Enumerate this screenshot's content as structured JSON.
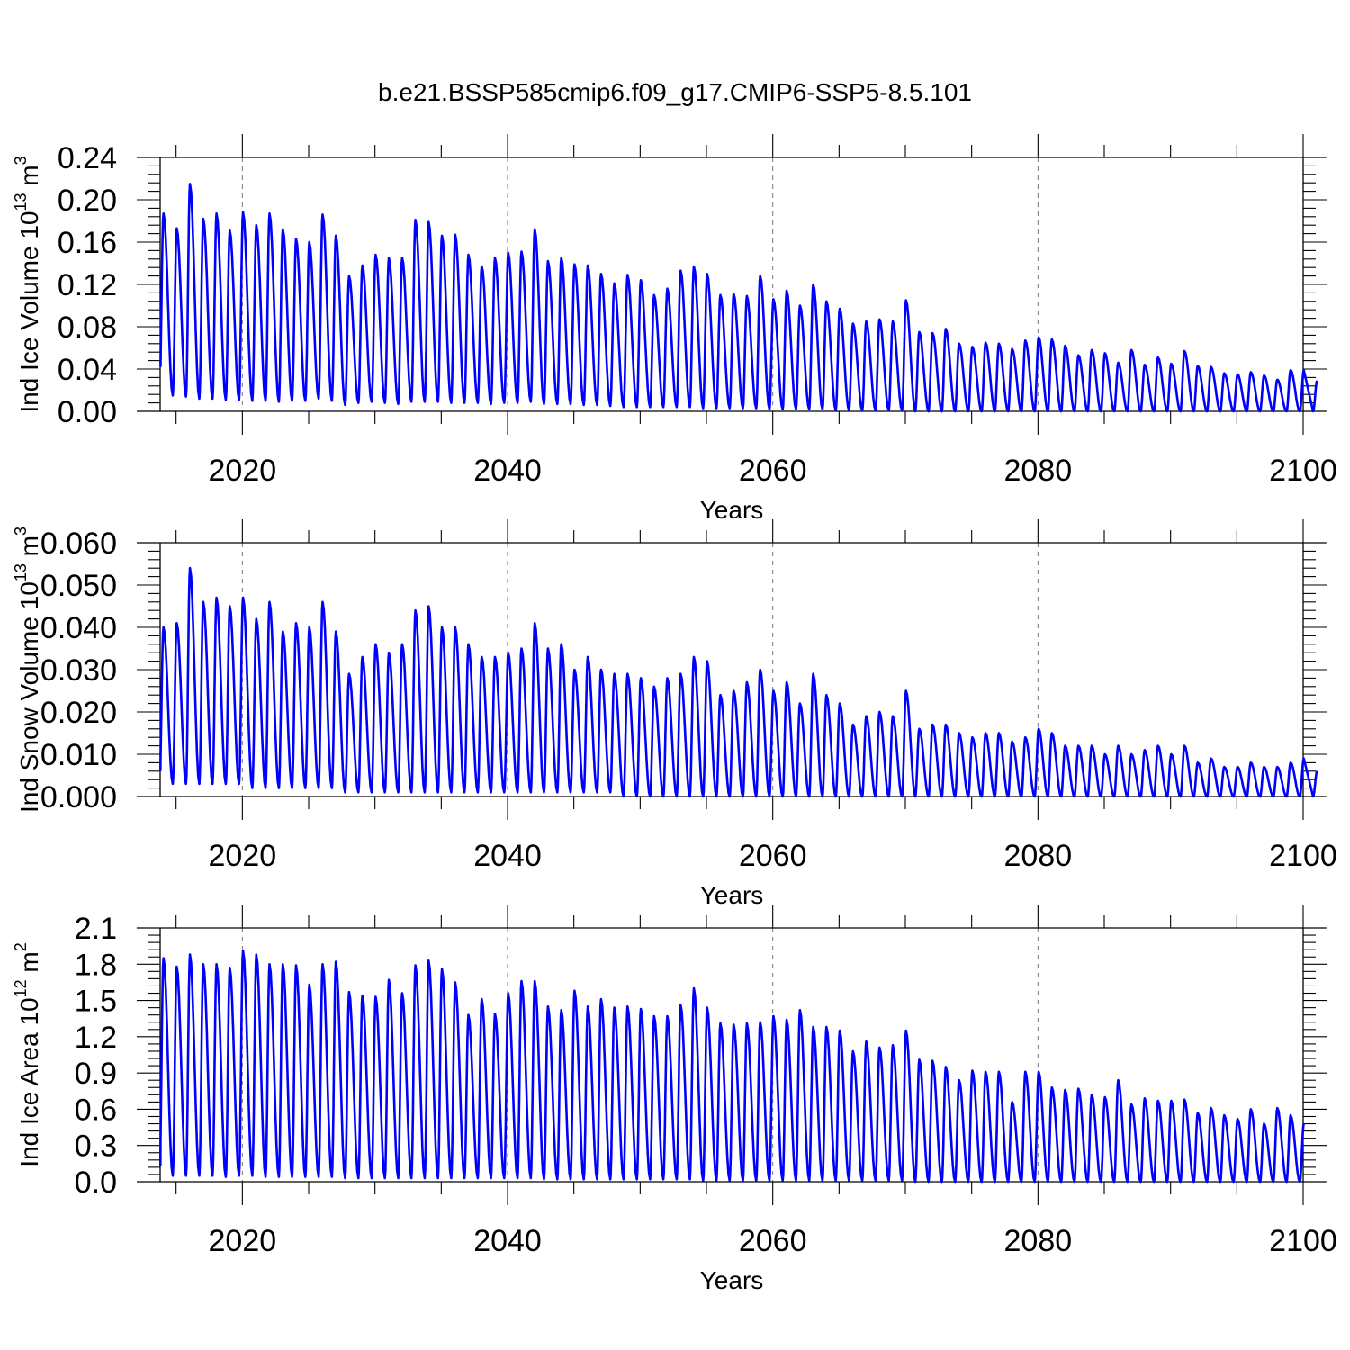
{
  "title": "b.e21.BSSP585cmip6.f09_g17.CMIP6-SSP5-8.5.101",
  "colors": {
    "line": "#0000ff",
    "axis": "#000000",
    "grid": "#777777"
  },
  "chart_data": [
    {
      "type": "line",
      "panel": "ice-volume",
      "ylabel": "Ind Ice Volume 10",
      "ylabel_exp": "13",
      "ylabel_unit": " m",
      "ylabel_unit_exp": "3",
      "xlabel": "Years",
      "xlim": [
        2013.8,
        2100
      ],
      "ylim": [
        0,
        0.24
      ],
      "x_ticks": [
        "2020",
        "2040",
        "2060",
        "2080",
        "2100"
      ],
      "y_ticks": [
        "0.00",
        "0.04",
        "0.08",
        "0.12",
        "0.16",
        "0.20",
        "0.24"
      ],
      "grid": "dashed vertical at 2020, 2040, 2060, 2080",
      "series": [
        {
          "start_year": 2014,
          "annual_max": [
            0.187,
            0.173,
            0.215,
            0.182,
            0.187,
            0.171,
            0.188,
            0.176,
            0.187,
            0.172,
            0.163,
            0.16,
            0.186,
            0.166,
            0.128,
            0.138,
            0.148,
            0.145,
            0.145,
            0.181,
            0.179,
            0.166,
            0.167,
            0.148,
            0.137,
            0.145,
            0.15,
            0.151,
            0.172,
            0.142,
            0.145,
            0.139,
            0.138,
            0.13,
            0.121,
            0.129,
            0.124,
            0.11,
            0.116,
            0.133,
            0.137,
            0.13,
            0.11,
            0.111,
            0.109,
            0.128,
            0.106,
            0.114,
            0.1,
            0.12,
            0.104,
            0.097,
            0.083,
            0.085,
            0.087,
            0.085,
            0.105,
            0.075,
            0.074,
            0.078,
            0.064,
            0.061,
            0.065,
            0.064,
            0.059,
            0.067,
            0.07,
            0.068,
            0.062,
            0.053,
            0.058,
            0.055,
            0.046,
            0.058,
            0.044,
            0.051,
            0.045,
            0.057,
            0.043,
            0.042,
            0.036,
            0.035,
            0.037,
            0.034,
            0.03,
            0.039,
            0.039,
            0.029
          ],
          "annual_min": [
            0.018,
            0.015,
            0.014,
            0.012,
            0.012,
            0.011,
            0.011,
            0.01,
            0.01,
            0.009,
            0.01,
            0.01,
            0.012,
            0.01,
            0.006,
            0.008,
            0.009,
            0.008,
            0.007,
            0.009,
            0.009,
            0.009,
            0.008,
            0.008,
            0.008,
            0.007,
            0.008,
            0.008,
            0.009,
            0.007,
            0.007,
            0.007,
            0.006,
            0.006,
            0.005,
            0.004,
            0.004,
            0.004,
            0.004,
            0.004,
            0.004,
            0.003,
            0.003,
            0.003,
            0.003,
            0.003,
            0.002,
            0.002,
            0.002,
            0.002,
            0.002,
            0.001,
            0.001,
            0.001,
            0.001,
            0.001,
            0.001,
            0.0,
            0.0,
            0.0,
            0.0,
            0.0,
            0.0,
            0.0,
            0.0,
            0.0,
            0.0,
            0.0,
            0.0,
            0.0,
            0.0,
            0.0,
            0.0,
            0.0,
            0.0,
            0.0,
            0.0,
            0.0,
            0.0,
            0.0,
            0.0,
            0.0,
            0.0,
            0.0,
            0.0,
            0.0,
            0.0,
            0.0
          ],
          "initial_value": 0.043
        }
      ]
    },
    {
      "type": "line",
      "panel": "snow-volume",
      "ylabel": "Ind Snow Volume 10",
      "ylabel_exp": "13",
      "ylabel_unit": " m",
      "ylabel_unit_exp": "3",
      "xlabel": "Years",
      "xlim": [
        2013.8,
        2100
      ],
      "ylim": [
        0,
        0.06
      ],
      "x_ticks": [
        "2020",
        "2040",
        "2060",
        "2080",
        "2100"
      ],
      "y_ticks": [
        "0.000",
        "0.010",
        "0.020",
        "0.030",
        "0.040",
        "0.050",
        "0.060"
      ],
      "grid": "dashed vertical at 2020, 2040, 2060, 2080",
      "series": [
        {
          "start_year": 2014,
          "annual_max": [
            0.04,
            0.041,
            0.054,
            0.046,
            0.047,
            0.045,
            0.047,
            0.042,
            0.046,
            0.039,
            0.041,
            0.04,
            0.046,
            0.039,
            0.029,
            0.033,
            0.036,
            0.034,
            0.036,
            0.044,
            0.045,
            0.04,
            0.04,
            0.036,
            0.033,
            0.033,
            0.034,
            0.035,
            0.041,
            0.035,
            0.036,
            0.03,
            0.033,
            0.03,
            0.029,
            0.029,
            0.028,
            0.026,
            0.028,
            0.029,
            0.033,
            0.032,
            0.024,
            0.025,
            0.027,
            0.03,
            0.025,
            0.027,
            0.022,
            0.029,
            0.024,
            0.022,
            0.017,
            0.019,
            0.02,
            0.019,
            0.025,
            0.016,
            0.017,
            0.017,
            0.015,
            0.014,
            0.015,
            0.015,
            0.013,
            0.014,
            0.016,
            0.015,
            0.012,
            0.012,
            0.012,
            0.01,
            0.012,
            0.01,
            0.011,
            0.012,
            0.01,
            0.012,
            0.008,
            0.009,
            0.007,
            0.007,
            0.008,
            0.007,
            0.007,
            0.008,
            0.009,
            0.006
          ],
          "annual_min": [
            0.003,
            0.003,
            0.003,
            0.003,
            0.003,
            0.003,
            0.003,
            0.002,
            0.002,
            0.002,
            0.002,
            0.002,
            0.002,
            0.002,
            0.001,
            0.001,
            0.001,
            0.001,
            0.001,
            0.001,
            0.001,
            0.001,
            0.001,
            0.001,
            0.001,
            0.001,
            0.001,
            0.001,
            0.001,
            0.001,
            0.001,
            0.001,
            0.001,
            0.001,
            0.001,
            0.0,
            0.0,
            0.0,
            0.0,
            0.0,
            0.0,
            0.0,
            0.0,
            0.0,
            0.0,
            0.0,
            0.0,
            0.0,
            0.0,
            0.0,
            0.0,
            0.0,
            0.0,
            0.0,
            0.0,
            0.0,
            0.0,
            0.0,
            0.0,
            0.0,
            0.0,
            0.0,
            0.0,
            0.0,
            0.0,
            0.0,
            0.0,
            0.0,
            0.0,
            0.0,
            0.0,
            0.0,
            0.0,
            0.0,
            0.0,
            0.0,
            0.0,
            0.0,
            0.0,
            0.0,
            0.0,
            0.0,
            0.0,
            0.0,
            0.0,
            0.0,
            0.0,
            0.0
          ],
          "initial_value": 0.006
        }
      ]
    },
    {
      "type": "line",
      "panel": "ice-area",
      "ylabel": "Ind Ice Area 10",
      "ylabel_exp": "12",
      "ylabel_unit": " m",
      "ylabel_unit_exp": "2",
      "xlabel": "Years",
      "xlim": [
        2013.8,
        2100
      ],
      "ylim": [
        0,
        2.1
      ],
      "x_ticks": [
        "2020",
        "2040",
        "2060",
        "2080",
        "2100"
      ],
      "y_ticks": [
        "0.0",
        "0.3",
        "0.6",
        "0.9",
        "1.2",
        "1.5",
        "1.8",
        "2.1"
      ],
      "grid": "dashed vertical at 2020, 2040, 2060, 2080",
      "series": [
        {
          "start_year": 2014,
          "annual_max": [
            1.85,
            1.78,
            1.88,
            1.8,
            1.8,
            1.77,
            1.91,
            1.88,
            1.8,
            1.8,
            1.79,
            1.63,
            1.8,
            1.82,
            1.57,
            1.54,
            1.53,
            1.67,
            1.56,
            1.79,
            1.83,
            1.76,
            1.65,
            1.38,
            1.51,
            1.39,
            1.56,
            1.66,
            1.66,
            1.45,
            1.42,
            1.58,
            1.45,
            1.51,
            1.44,
            1.45,
            1.43,
            1.37,
            1.37,
            1.46,
            1.6,
            1.44,
            1.31,
            1.3,
            1.31,
            1.32,
            1.37,
            1.34,
            1.42,
            1.28,
            1.28,
            1.25,
            1.08,
            1.16,
            1.11,
            1.13,
            1.25,
            1.01,
            1.0,
            0.95,
            0.84,
            0.92,
            0.91,
            0.91,
            0.66,
            0.91,
            0.91,
            0.78,
            0.76,
            0.77,
            0.72,
            0.7,
            0.84,
            0.64,
            0.69,
            0.67,
            0.67,
            0.68,
            0.57,
            0.61,
            0.55,
            0.52,
            0.6,
            0.48,
            0.61,
            0.55,
            0.48
          ],
          "annual_min": [
            0.06,
            0.05,
            0.05,
            0.05,
            0.05,
            0.04,
            0.05,
            0.05,
            0.04,
            0.04,
            0.04,
            0.04,
            0.04,
            0.04,
            0.03,
            0.03,
            0.03,
            0.03,
            0.03,
            0.03,
            0.03,
            0.03,
            0.03,
            0.03,
            0.03,
            0.03,
            0.03,
            0.03,
            0.03,
            0.02,
            0.02,
            0.02,
            0.02,
            0.02,
            0.02,
            0.02,
            0.02,
            0.02,
            0.02,
            0.02,
            0.02,
            0.01,
            0.01,
            0.01,
            0.01,
            0.01,
            0.01,
            0.01,
            0.01,
            0.01,
            0.01,
            0.01,
            0.01,
            0.01,
            0.01,
            0.01,
            0.01,
            0.0,
            0.0,
            0.0,
            0.0,
            0.0,
            0.0,
            0.0,
            0.0,
            0.0,
            0.0,
            0.0,
            0.0,
            0.0,
            0.0,
            0.0,
            0.0,
            0.0,
            0.0,
            0.0,
            0.0,
            0.0,
            0.0,
            0.0,
            0.0,
            0.0,
            0.0,
            0.0,
            0.0,
            0.0,
            0.0
          ],
          "initial_value": 0.13
        }
      ]
    }
  ]
}
